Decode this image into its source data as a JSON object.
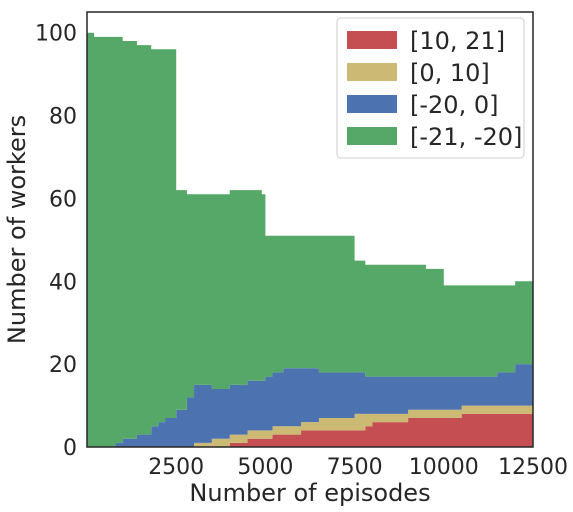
{
  "chart_data": {
    "type": "area",
    "title": "",
    "xlabel": "Number of episodes",
    "ylabel": "Number of workers",
    "xlim": [
      0,
      12500
    ],
    "ylim": [
      0,
      105
    ],
    "xticks": [
      2500,
      5000,
      7500,
      10000,
      12500
    ],
    "yticks": [
      0,
      20,
      40,
      60,
      80,
      100
    ],
    "stacked": true,
    "step": true,
    "grid": false,
    "legend_position": "top-right",
    "colors": {
      "[10, 21]": "#c44e52",
      "[0, 10]": "#ccb974",
      "[-20, 0]": "#4c72b0",
      "[-21, -20]": "#55a868"
    },
    "x": [
      0,
      200,
      800,
      1000,
      1400,
      1800,
      2000,
      2200,
      2500,
      2800,
      3000,
      3500,
      4000,
      4500,
      4900,
      5000,
      5200,
      5500,
      6000,
      6500,
      6800,
      7000,
      7500,
      7800,
      8000,
      8500,
      9000,
      9500,
      10000,
      10500,
      11000,
      11500,
      12000,
      12500
    ],
    "series": [
      {
        "name": "[10, 21]",
        "values": [
          0,
          0,
          0,
          0,
          0,
          0,
          0,
          0,
          0,
          0,
          0,
          0,
          1,
          2,
          2,
          2,
          3,
          3,
          4,
          4,
          4,
          4,
          4,
          5,
          6,
          6,
          7,
          7,
          7,
          8,
          8,
          8,
          8,
          8
        ]
      },
      {
        "name": "[0, 10]",
        "values": [
          0,
          0,
          0,
          0,
          0,
          0,
          0,
          0,
          0,
          0,
          1,
          2,
          2,
          2,
          2,
          2,
          2,
          2,
          2,
          3,
          3,
          3,
          4,
          3,
          2,
          2,
          2,
          2,
          2,
          2,
          2,
          2,
          2,
          2
        ]
      },
      {
        "name": "[-20, 0]",
        "values": [
          0,
          0,
          1,
          2,
          3,
          5,
          6,
          7,
          9,
          12,
          14,
          12,
          12,
          12,
          12,
          13,
          13,
          14,
          13,
          11,
          11,
          11,
          10,
          9,
          9,
          9,
          8,
          8,
          8,
          7,
          7,
          8,
          10,
          10
        ]
      },
      {
        "name": "[-21, -20]",
        "values": [
          100,
          99,
          98,
          96,
          94,
          91,
          90,
          89,
          53,
          49,
          46,
          47,
          47,
          46,
          45,
          34,
          33,
          32,
          32,
          33,
          33,
          33,
          27,
          27,
          27,
          27,
          27,
          26,
          22,
          22,
          22,
          21,
          20,
          20
        ]
      }
    ]
  }
}
